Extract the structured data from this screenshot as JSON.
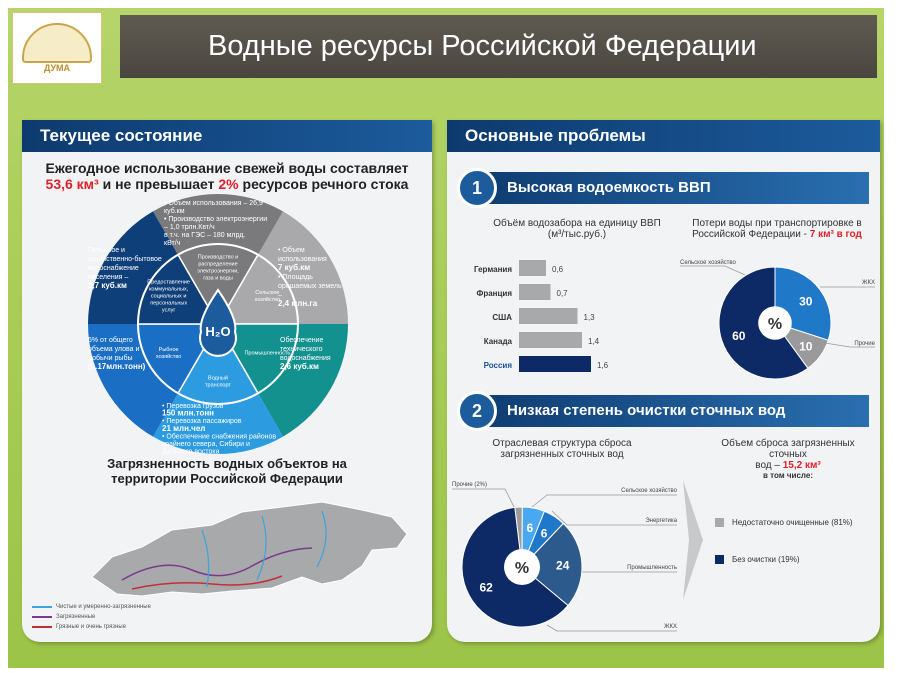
{
  "header": {
    "title": "Водные ресурсы Российской Федерации",
    "logo_text": "ГОСУДАРСТВЕННАЯ ДУМА"
  },
  "left": {
    "title": "Текущее состояние",
    "headline_1": "Ежегодное использование свежей воды составляет",
    "headline_2a": "53,6 км³",
    "headline_2b": " и не превышает ",
    "headline_2c": "2%",
    "headline_2d": " ресурсов речного стока",
    "wheel": {
      "center": "H₂O",
      "inner": [
        "Производство и распределение электроэнергии, газа и воды",
        "Сельское хозяйство",
        "Промышленность",
        "Водный транспорт",
        "Рыбное хозяйство",
        "Предоставление коммунальных, социальных и персональных услуг"
      ],
      "outer": [
        {
          "lines": [
            "• Объем использования – 26,9 куб.км",
            "• Производство электроэнергии – 1,0 трлн.Квт/ч",
            "в т.ч. на ГЭС – 180 млрд. кВт/ч"
          ]
        },
        {
          "lines": [
            "• Объем использования",
            "7 куб.км",
            "• Площадь орошаемых земель –",
            "2,4 млн.га"
          ]
        },
        {
          "lines": [
            "Обеспечение технического водоснабжения",
            "2,6 куб.км"
          ]
        },
        {
          "lines": [
            "• Перевозка грузов",
            "150 млн.тонн",
            "• Перевозка пассажиров",
            "21 млн.чел",
            "• Обеспечение снабжения районов крайнего севера, Сибири и Дальнего востока"
          ]
        },
        {
          "lines": [
            "5% от общего объема улова и добычи рыбы",
            "(0.17млн.тонн)"
          ]
        },
        {
          "lines": [
            "Питьевое и хозяйственно-бытовое водоснабжение населения –",
            "8,7 куб.км"
          ]
        }
      ],
      "colors": [
        "#7a7a7c",
        "#a9a9ab",
        "#13918f",
        "#2d9be0",
        "#1a6fc4",
        "#0f3f78"
      ]
    },
    "map_title": "Загрязненность водных объектов на территории Российской Федерации",
    "legend": [
      {
        "label": "Чистые и умеренно-загрязненные",
        "color": "#3aa3e0"
      },
      {
        "label": "Загрязненные",
        "color": "#7a3a8a"
      },
      {
        "label": "Грязные и очень грязные",
        "color": "#c0303a"
      }
    ]
  },
  "right": {
    "title": "Основные проблемы",
    "problem1": {
      "num": "1",
      "title": "Высокая водоемкость ВВП"
    },
    "problem2": {
      "num": "2",
      "title": "Низкая степень очистки сточных вод"
    },
    "loss_title_1": "Потери воды при транспортировке в",
    "loss_title_2": "Российской Федерации - ",
    "loss_title_3": "7 км³ в год",
    "discharge_title_1": "Объем сброса загрязненных сточных",
    "discharge_title_2": "вод – ",
    "discharge_title_3": "15,2 км³",
    "discharge_title_4": "в том числе:",
    "discharge_legend": [
      {
        "label": "Недостаточно очищенные (81%)",
        "color": "#a9a9ab"
      },
      {
        "label": "Без очистки (19%)",
        "color": "#0d2a66"
      }
    ]
  },
  "chart_data": [
    {
      "type": "bar",
      "orientation": "horizontal",
      "title": "Объём водозабора на единицу ВВП (м³/тыс.руб.)",
      "categories": [
        "Германия",
        "Франция",
        "США",
        "Канада",
        "Россия"
      ],
      "values": [
        0.6,
        0.7,
        1.3,
        1.4,
        1.6
      ],
      "labels": [
        "0,6",
        "0,7",
        "1,3",
        "1,4",
        "1,6"
      ],
      "colors": [
        "#a9a9ab",
        "#a9a9ab",
        "#a9a9ab",
        "#a9a9ab",
        "#0d2a66"
      ],
      "highlight": "Россия"
    },
    {
      "type": "pie",
      "donut": true,
      "center_label": "%",
      "slices": [
        {
          "label": "ЖКХ",
          "value": 30,
          "color": "#1f78c8"
        },
        {
          "label": "Прочие",
          "value": 10,
          "color": "#9a9a9c"
        },
        {
          "label": "Сельское хозяйство",
          "value": 60,
          "color": "#0d2a66"
        }
      ]
    },
    {
      "type": "pie",
      "donut": true,
      "title": "Отраслевая структура сброса загрязненных сточных вод",
      "center_label": "%",
      "slices": [
        {
          "label": "Прочие (2%)",
          "value": 2,
          "color": "#9a9a9c",
          "show": ""
        },
        {
          "label": "Сельское хозяйство",
          "value": 6,
          "color": "#4aa8f0",
          "show": "6"
        },
        {
          "label": "Энергетика",
          "value": 6,
          "color": "#1f78c8",
          "show": "6"
        },
        {
          "label": "Промышленность",
          "value": 24,
          "color": "#2c5a8c",
          "show": "24"
        },
        {
          "label": "ЖКХ",
          "value": 62,
          "color": "#0d2a66",
          "show": "62"
        }
      ]
    }
  ]
}
